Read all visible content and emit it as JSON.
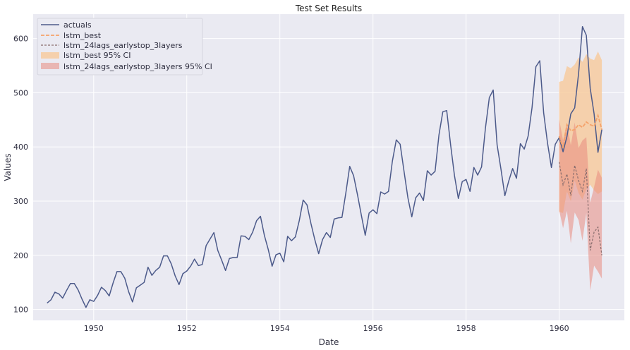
{
  "chart_data": {
    "type": "line",
    "title": "Test Set Results",
    "xlabel": "Date",
    "ylabel": "Values",
    "xlim": [
      1948.7,
      1961.4
    ],
    "ylim": [
      80,
      645
    ],
    "x_ticks": [
      1950,
      1952,
      1954,
      1956,
      1958,
      1960
    ],
    "y_ticks": [
      100,
      200,
      300,
      400,
      500,
      600
    ],
    "grid": true,
    "legend_position": "top-left",
    "colors": {
      "background": "#eaeaf2",
      "grid": "#ffffff",
      "actuals": "#4c5a8a",
      "lstm_best": "#f5a26a",
      "lstm_24lags_earlystop_3layers": "#8a6e6e",
      "lstm_best_ci": "#f7c99a",
      "lstm_24lags_ci": "#e88b80"
    },
    "forecast_months": [
      "1960-01",
      "1960-02",
      "1960-03",
      "1960-04",
      "1960-05",
      "1960-06",
      "1960-07",
      "1960-08",
      "1960-09",
      "1960-10",
      "1960-11",
      "1960-12"
    ],
    "actuals_start": "1949-01",
    "series": [
      {
        "name": "actuals",
        "values": [
          112,
          118,
          132,
          129,
          121,
          135,
          148,
          148,
          136,
          119,
          104,
          118,
          115,
          126,
          141,
          135,
          125,
          149,
          170,
          170,
          158,
          133,
          114,
          140,
          145,
          150,
          178,
          163,
          172,
          178,
          199,
          199,
          184,
          162,
          146,
          166,
          171,
          180,
          193,
          181,
          183,
          218,
          230,
          242,
          209,
          191,
          172,
          194,
          196,
          196,
          236,
          235,
          229,
          243,
          264,
          272,
          237,
          211,
          180,
          201,
          204,
          188,
          235,
          227,
          234,
          264,
          302,
          293,
          259,
          229,
          203,
          229,
          242,
          233,
          267,
          269,
          270,
          315,
          364,
          347,
          312,
          274,
          237,
          278,
          284,
          277,
          317,
          313,
          318,
          374,
          413,
          405,
          355,
          306,
          271,
          306,
          315,
          301,
          356,
          348,
          355,
          422,
          465,
          467,
          404,
          347,
          305,
          336,
          340,
          318,
          362,
          348,
          363,
          435,
          491,
          505,
          404,
          359,
          310,
          337,
          360,
          342,
          406,
          396,
          420,
          472,
          548,
          559,
          463,
          407,
          362,
          405,
          417,
          391,
          419,
          461,
          472,
          535,
          622,
          606,
          508,
          461,
          390,
          432
        ]
      },
      {
        "name": "lstm_best",
        "values": [
          420,
          398,
          441,
          430,
          432,
          441,
          436,
          446,
          441,
          438,
          458,
          432
        ]
      },
      {
        "name": "lstm_24lags_earlystop_3layers",
        "values": [
          372,
          330,
          350,
          310,
          366,
          338,
          318,
          360,
          209,
          243,
          252,
          200
        ]
      },
      {
        "name": "lstm_best 95% CI",
        "lower": [
          280,
          278,
          318,
          300,
          338,
          315,
          303,
          322,
          330,
          320,
          313,
          318
        ],
        "upper": [
          520,
          522,
          549,
          545,
          552,
          565,
          557,
          571,
          563,
          560,
          576,
          560
        ]
      },
      {
        "name": "lstm_24lags_earlystop_3layers 95% CI",
        "lower": [
          283,
          250,
          282,
          222,
          279,
          265,
          227,
          278,
          135,
          181,
          170,
          157
        ],
        "upper": [
          451,
          412,
          444,
          403,
          445,
          398,
          412,
          418,
          297,
          326,
          358,
          343
        ]
      }
    ]
  }
}
